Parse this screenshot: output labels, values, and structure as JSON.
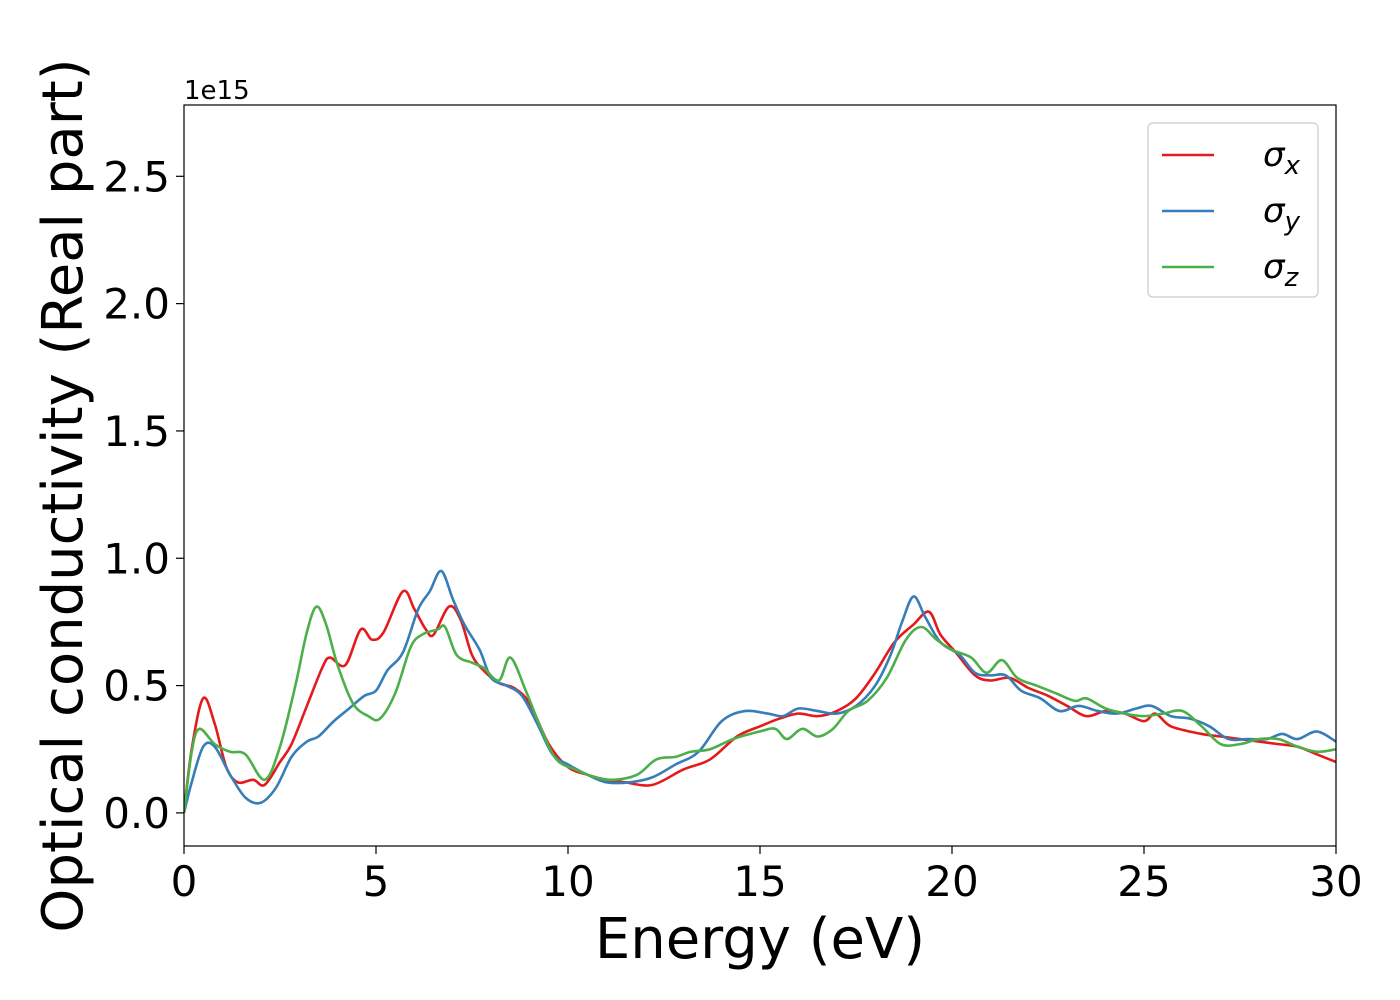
{
  "chart_data": {
    "type": "line",
    "xlabel": "Energy (eV)",
    "ylabel": "Optical conductivity (Real part)",
    "offset_text": "1e15",
    "multiplier": 1000000000000000.0,
    "xlim": [
      0,
      30
    ],
    "ylim": [
      -0.13,
      2.78
    ],
    "x_ticks": [
      0,
      5,
      10,
      15,
      20,
      25,
      30
    ],
    "x_tick_labels": [
      "0",
      "5",
      "10",
      "15",
      "20",
      "25",
      "30"
    ],
    "y_ticks": [
      0.0,
      0.5,
      1.0,
      1.5,
      2.0,
      2.5
    ],
    "y_tick_labels": [
      "0.0",
      "0.5",
      "1.0",
      "1.5",
      "2.0",
      "2.5"
    ],
    "grid": false,
    "legend_position": "top-right",
    "series": [
      {
        "name": "σx",
        "legend_base": "σ",
        "legend_sub": "x",
        "color": "#e41a1c",
        "points": [
          [
            0,
            0
          ],
          [
            0.2,
            0.25
          ],
          [
            0.5,
            0.45
          ],
          [
            0.8,
            0.35
          ],
          [
            1.1,
            0.18
          ],
          [
            1.4,
            0.12
          ],
          [
            1.8,
            0.13
          ],
          [
            2.1,
            0.11
          ],
          [
            2.5,
            0.2
          ],
          [
            2.8,
            0.27
          ],
          [
            3.2,
            0.42
          ],
          [
            3.6,
            0.57
          ],
          [
            3.8,
            0.61
          ],
          [
            4.2,
            0.58
          ],
          [
            4.6,
            0.72
          ],
          [
            4.9,
            0.68
          ],
          [
            5.2,
            0.71
          ],
          [
            5.7,
            0.87
          ],
          [
            6.0,
            0.8
          ],
          [
            6.3,
            0.72
          ],
          [
            6.5,
            0.7
          ],
          [
            6.9,
            0.81
          ],
          [
            7.2,
            0.76
          ],
          [
            7.5,
            0.62
          ],
          [
            7.8,
            0.56
          ],
          [
            8.2,
            0.51
          ],
          [
            8.6,
            0.49
          ],
          [
            9.0,
            0.43
          ],
          [
            9.5,
            0.27
          ],
          [
            10.0,
            0.18
          ],
          [
            10.5,
            0.15
          ],
          [
            11.0,
            0.13
          ],
          [
            11.5,
            0.12
          ],
          [
            12.2,
            0.11
          ],
          [
            13.0,
            0.17
          ],
          [
            13.7,
            0.21
          ],
          [
            14.4,
            0.3
          ],
          [
            15.0,
            0.34
          ],
          [
            15.5,
            0.37
          ],
          [
            16.0,
            0.39
          ],
          [
            16.5,
            0.38
          ],
          [
            17.0,
            0.4
          ],
          [
            17.5,
            0.45
          ],
          [
            18.0,
            0.55
          ],
          [
            18.5,
            0.67
          ],
          [
            19.0,
            0.74
          ],
          [
            19.4,
            0.79
          ],
          [
            19.7,
            0.7
          ],
          [
            20.1,
            0.63
          ],
          [
            20.6,
            0.54
          ],
          [
            21.0,
            0.52
          ],
          [
            21.5,
            0.53
          ],
          [
            22.0,
            0.49
          ],
          [
            22.5,
            0.46
          ],
          [
            23.0,
            0.42
          ],
          [
            23.5,
            0.38
          ],
          [
            24.0,
            0.4
          ],
          [
            24.5,
            0.39
          ],
          [
            25.0,
            0.36
          ],
          [
            25.3,
            0.39
          ],
          [
            25.7,
            0.34
          ],
          [
            26.5,
            0.31
          ],
          [
            27.0,
            0.3
          ],
          [
            27.5,
            0.29
          ],
          [
            28.0,
            0.28
          ],
          [
            28.5,
            0.27
          ],
          [
            29.0,
            0.26
          ],
          [
            29.5,
            0.23
          ],
          [
            30.0,
            0.2
          ]
        ]
      },
      {
        "name": "σy",
        "legend_base": "σ",
        "legend_sub": "y",
        "color": "#377eb8",
        "points": [
          [
            0,
            0
          ],
          [
            0.2,
            0.12
          ],
          [
            0.5,
            0.26
          ],
          [
            0.8,
            0.26
          ],
          [
            1.2,
            0.15
          ],
          [
            1.6,
            0.06
          ],
          [
            2.0,
            0.04
          ],
          [
            2.4,
            0.1
          ],
          [
            2.8,
            0.22
          ],
          [
            3.2,
            0.28
          ],
          [
            3.5,
            0.3
          ],
          [
            3.9,
            0.36
          ],
          [
            4.3,
            0.41
          ],
          [
            4.7,
            0.46
          ],
          [
            5.0,
            0.48
          ],
          [
            5.3,
            0.56
          ],
          [
            5.7,
            0.63
          ],
          [
            6.1,
            0.8
          ],
          [
            6.4,
            0.87
          ],
          [
            6.7,
            0.95
          ],
          [
            7.0,
            0.84
          ],
          [
            7.3,
            0.74
          ],
          [
            7.7,
            0.64
          ],
          [
            8.0,
            0.53
          ],
          [
            8.4,
            0.5
          ],
          [
            8.8,
            0.46
          ],
          [
            9.2,
            0.35
          ],
          [
            9.6,
            0.23
          ],
          [
            10.0,
            0.19
          ],
          [
            10.5,
            0.15
          ],
          [
            11.0,
            0.12
          ],
          [
            11.6,
            0.12
          ],
          [
            12.2,
            0.14
          ],
          [
            12.8,
            0.19
          ],
          [
            13.4,
            0.24
          ],
          [
            14.0,
            0.36
          ],
          [
            14.6,
            0.4
          ],
          [
            15.2,
            0.39
          ],
          [
            15.6,
            0.38
          ],
          [
            16.0,
            0.41
          ],
          [
            16.5,
            0.4
          ],
          [
            17.0,
            0.39
          ],
          [
            17.5,
            0.42
          ],
          [
            18.0,
            0.5
          ],
          [
            18.4,
            0.62
          ],
          [
            18.7,
            0.75
          ],
          [
            19.0,
            0.85
          ],
          [
            19.3,
            0.77
          ],
          [
            19.7,
            0.67
          ],
          [
            20.2,
            0.62
          ],
          [
            20.6,
            0.55
          ],
          [
            21.0,
            0.54
          ],
          [
            21.4,
            0.54
          ],
          [
            21.8,
            0.48
          ],
          [
            22.3,
            0.45
          ],
          [
            22.8,
            0.4
          ],
          [
            23.3,
            0.42
          ],
          [
            23.8,
            0.4
          ],
          [
            24.3,
            0.39
          ],
          [
            24.8,
            0.41
          ],
          [
            25.2,
            0.42
          ],
          [
            25.7,
            0.38
          ],
          [
            26.2,
            0.37
          ],
          [
            26.7,
            0.34
          ],
          [
            27.2,
            0.29
          ],
          [
            27.7,
            0.29
          ],
          [
            28.2,
            0.29
          ],
          [
            28.6,
            0.31
          ],
          [
            29.0,
            0.29
          ],
          [
            29.5,
            0.32
          ],
          [
            30.0,
            0.28
          ]
        ]
      },
      {
        "name": "σz",
        "legend_base": "σ",
        "legend_sub": "z",
        "color": "#4daf4a",
        "points": [
          [
            0,
            0
          ],
          [
            0.2,
            0.24
          ],
          [
            0.4,
            0.33
          ],
          [
            0.8,
            0.27
          ],
          [
            1.2,
            0.24
          ],
          [
            1.6,
            0.23
          ],
          [
            2.1,
            0.13
          ],
          [
            2.5,
            0.26
          ],
          [
            2.9,
            0.5
          ],
          [
            3.2,
            0.71
          ],
          [
            3.45,
            0.81
          ],
          [
            3.7,
            0.74
          ],
          [
            4.0,
            0.58
          ],
          [
            4.4,
            0.43
          ],
          [
            4.8,
            0.38
          ],
          [
            5.1,
            0.37
          ],
          [
            5.5,
            0.47
          ],
          [
            5.9,
            0.65
          ],
          [
            6.2,
            0.7
          ],
          [
            6.6,
            0.72
          ],
          [
            6.8,
            0.73
          ],
          [
            7.1,
            0.62
          ],
          [
            7.5,
            0.59
          ],
          [
            7.8,
            0.57
          ],
          [
            8.2,
            0.52
          ],
          [
            8.5,
            0.61
          ],
          [
            8.9,
            0.48
          ],
          [
            9.3,
            0.33
          ],
          [
            9.7,
            0.21
          ],
          [
            10.2,
            0.17
          ],
          [
            10.7,
            0.14
          ],
          [
            11.2,
            0.13
          ],
          [
            11.8,
            0.15
          ],
          [
            12.3,
            0.21
          ],
          [
            12.8,
            0.22
          ],
          [
            13.2,
            0.24
          ],
          [
            13.7,
            0.25
          ],
          [
            14.3,
            0.29
          ],
          [
            15.0,
            0.32
          ],
          [
            15.4,
            0.33
          ],
          [
            15.7,
            0.29
          ],
          [
            16.1,
            0.33
          ],
          [
            16.5,
            0.3
          ],
          [
            16.9,
            0.33
          ],
          [
            17.3,
            0.4
          ],
          [
            17.8,
            0.44
          ],
          [
            18.3,
            0.53
          ],
          [
            18.8,
            0.68
          ],
          [
            19.2,
            0.73
          ],
          [
            19.6,
            0.68
          ],
          [
            20.0,
            0.64
          ],
          [
            20.5,
            0.61
          ],
          [
            20.9,
            0.55
          ],
          [
            21.3,
            0.6
          ],
          [
            21.7,
            0.53
          ],
          [
            22.2,
            0.5
          ],
          [
            22.7,
            0.47
          ],
          [
            23.2,
            0.44
          ],
          [
            23.5,
            0.45
          ],
          [
            24.0,
            0.41
          ],
          [
            24.5,
            0.39
          ],
          [
            25.0,
            0.38
          ],
          [
            25.5,
            0.39
          ],
          [
            26.0,
            0.4
          ],
          [
            26.5,
            0.34
          ],
          [
            27.0,
            0.27
          ],
          [
            27.5,
            0.27
          ],
          [
            28.0,
            0.29
          ],
          [
            28.5,
            0.29
          ],
          [
            29.0,
            0.26
          ],
          [
            29.5,
            0.24
          ],
          [
            30.0,
            0.25
          ]
        ]
      }
    ]
  }
}
